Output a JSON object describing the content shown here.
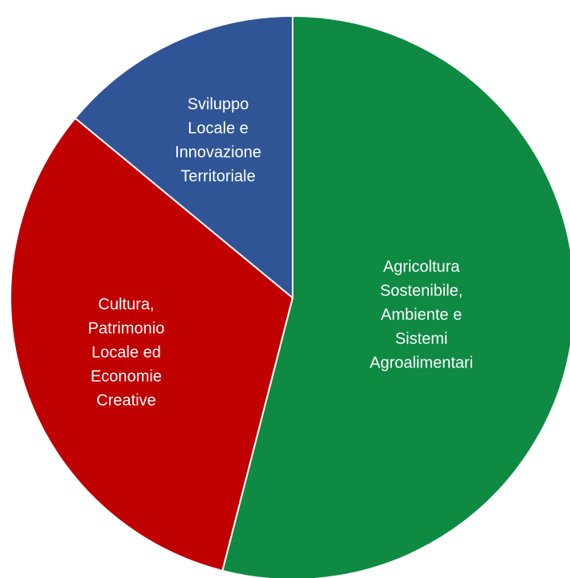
{
  "chart_data": {
    "type": "pie",
    "slices": [
      {
        "label_lines": [
          "Agricoltura",
          "Sostenibile,",
          "Ambiente e",
          "Sistemi",
          "Agroalimentari"
        ],
        "value": 54,
        "color": "#0e8a43"
      },
      {
        "label_lines": [
          "Cultura,",
          "Patrimonio",
          "Locale ed",
          "Economie",
          "Creative"
        ],
        "value": 32,
        "color": "#c00000"
      },
      {
        "label_lines": [
          "Sviluppo",
          "Locale e",
          "Innovazione",
          "Territoriale"
        ],
        "value": 14,
        "color": "#2f5597"
      }
    ],
    "start_angle": "top",
    "direction": "clockwise",
    "legend": "none"
  }
}
